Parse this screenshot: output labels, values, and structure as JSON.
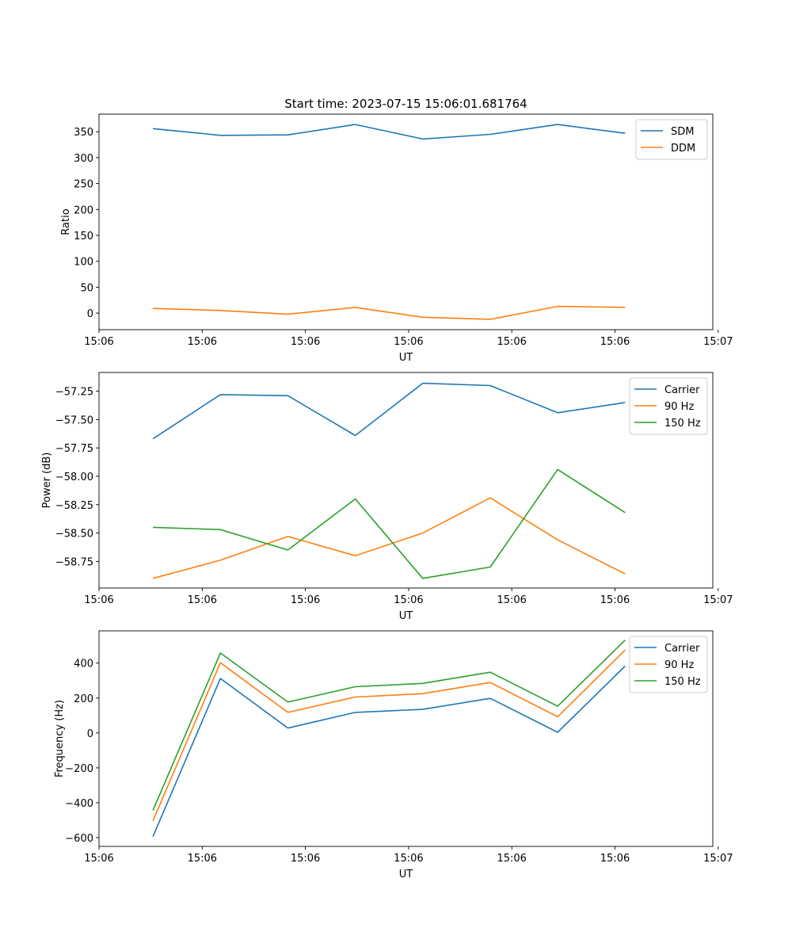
{
  "chart_data": [
    {
      "type": "line",
      "title": "Start time: 2023-07-15 15:06:01.681764",
      "xlabel": "UT",
      "ylabel": "Ratio",
      "x": [
        1,
        2,
        3,
        4,
        5,
        6,
        7,
        8
      ],
      "xlim": [
        0.2,
        9.3
      ],
      "x_ticks": [
        0.2,
        1.73,
        3.26,
        4.79,
        6.32,
        7.85,
        9.38
      ],
      "x_tick_labels": [
        "15:06",
        "15:06",
        "15:06",
        "15:06",
        "15:06",
        "15:06",
        "15:07"
      ],
      "ylim": [
        -32,
        384
      ],
      "y_ticks": [
        0,
        50,
        100,
        150,
        200,
        250,
        300,
        350
      ],
      "y_tick_labels": [
        "0",
        "50",
        "100",
        "150",
        "200",
        "250",
        "300",
        "350"
      ],
      "legend_position": "top-right",
      "series": [
        {
          "name": "SDM",
          "color": "#1f77b4",
          "values": [
            356,
            343,
            344,
            364,
            336,
            345,
            364,
            347
          ]
        },
        {
          "name": "DDM",
          "color": "#ff7f0e",
          "values": [
            9,
            5,
            -2,
            11,
            -8,
            -12,
            13,
            11
          ]
        }
      ]
    },
    {
      "type": "line",
      "title": "",
      "xlabel": "UT",
      "ylabel": "Power (dB)",
      "x": [
        1,
        2,
        3,
        4,
        5,
        6,
        7,
        8
      ],
      "xlim": [
        0.2,
        9.3
      ],
      "x_ticks": [
        0.2,
        1.73,
        3.26,
        4.79,
        6.32,
        7.85,
        9.38
      ],
      "x_tick_labels": [
        "15:06",
        "15:06",
        "15:06",
        "15:06",
        "15:06",
        "15:06",
        "15:07"
      ],
      "ylim": [
        -58.985,
        -57.085
      ],
      "y_ticks": [
        -58.75,
        -58.5,
        -58.25,
        -58.0,
        -57.75,
        -57.5,
        -57.25
      ],
      "y_tick_labels": [
        "−58.75",
        "−58.50",
        "−58.25",
        "−58.00",
        "−57.75",
        "−57.50",
        "−57.25"
      ],
      "legend_position": "top-right",
      "series": [
        {
          "name": "Carrier",
          "color": "#1f77b4",
          "values": [
            -57.67,
            -57.28,
            -57.29,
            -57.64,
            -57.18,
            -57.2,
            -57.44,
            -57.35
          ]
        },
        {
          "name": "90 Hz",
          "color": "#ff7f0e",
          "values": [
            -58.9,
            -58.74,
            -58.53,
            -58.7,
            -58.5,
            -58.19,
            -58.56,
            -58.86
          ]
        },
        {
          "name": "150 Hz",
          "color": "#2ca02c",
          "values": [
            -58.45,
            -58.47,
            -58.65,
            -58.2,
            -58.9,
            -58.8,
            -57.94,
            -58.32
          ]
        }
      ]
    },
    {
      "type": "line",
      "title": "",
      "xlabel": "UT",
      "ylabel": "Frequency (Hz)",
      "x": [
        1,
        2,
        3,
        4,
        5,
        6,
        7,
        8
      ],
      "xlim": [
        0.2,
        9.3
      ],
      "x_ticks": [
        0.2,
        1.73,
        3.26,
        4.79,
        6.32,
        7.85,
        9.38
      ],
      "x_tick_labels": [
        "15:06",
        "15:06",
        "15:06",
        "15:06",
        "15:06",
        "15:06",
        "15:07"
      ],
      "ylim": [
        -650,
        585
      ],
      "y_ticks": [
        -600,
        -400,
        -200,
        0,
        200,
        400
      ],
      "y_tick_labels": [
        "−600",
        "−400",
        "−200",
        "0",
        "200",
        "400"
      ],
      "legend_position": "top-right",
      "series": [
        {
          "name": "Carrier",
          "color": "#1f77b4",
          "values": [
            -594,
            312,
            28,
            118,
            135,
            198,
            4,
            383
          ]
        },
        {
          "name": "90 Hz",
          "color": "#ff7f0e",
          "values": [
            -504,
            402,
            118,
            206,
            225,
            289,
            93,
            475
          ]
        },
        {
          "name": "150 Hz",
          "color": "#2ca02c",
          "values": [
            -444,
            458,
            177,
            265,
            284,
            348,
            153,
            532
          ]
        }
      ]
    }
  ]
}
